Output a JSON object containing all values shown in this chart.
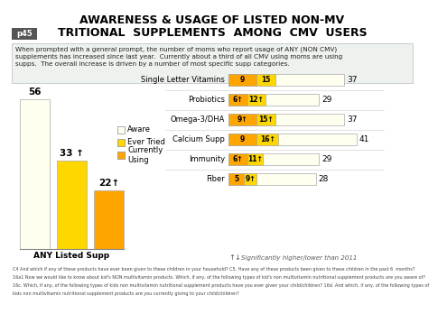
{
  "title_line1": "AWARENESS & USAGE OF LISTED NON-MV",
  "title_line2": "TRITIONAL  SUPPLEMENTS  AMONG  CMV  USERS",
  "page_label": "p45",
  "subtitle": "When prompted with a general prompt, the number of moms who report usage of ANY (NON CMV)\nsupplements has increased since last year.  Currently about a third of all CMV using moms are using\nsupps.  The overall increase is driven by a number of most specific supp categories.",
  "left_bar": {
    "label": "ANY Listed Supp",
    "aware": 56,
    "ever_tried": 33,
    "currently": 22,
    "ever_tried_arrow": true,
    "currently_arrow": true
  },
  "right_bars": [
    {
      "category": "Single Letter Vitamins",
      "currently": 9,
      "ever_tried": 15,
      "aware": 37,
      "curr_arrow": false,
      "tried_arrow": false
    },
    {
      "category": "Probiotics",
      "currently": 6,
      "ever_tried": 12,
      "aware": 29,
      "curr_arrow": true,
      "tried_arrow": true
    },
    {
      "category": "Omega-3/DHA",
      "currently": 9,
      "ever_tried": 15,
      "aware": 37,
      "curr_arrow": true,
      "tried_arrow": true
    },
    {
      "category": "Calcium Supp",
      "currently": 9,
      "ever_tried": 16,
      "aware": 41,
      "curr_arrow": false,
      "tried_arrow": true
    },
    {
      "category": "Immunity",
      "currently": 6,
      "ever_tried": 11,
      "aware": 29,
      "curr_arrow": true,
      "tried_arrow": true
    },
    {
      "category": "Fiber",
      "currently": 5,
      "ever_tried": 9,
      "aware": 28,
      "curr_arrow": false,
      "tried_arrow": true
    }
  ],
  "colors": {
    "aware": "#FFFFF0",
    "ever_tried": "#FFD700",
    "currently": "#FFA500",
    "background": "#FFFFFF",
    "subtitle_bg": "#EEF2EE",
    "page_label_bg": "#555555",
    "page_label_fg": "#FFFFFF"
  },
  "legend": {
    "aware_label": "Aware",
    "tried_label": "Ever Tried",
    "current_label": "Currently\nUsing"
  },
  "footnote_line1": "C4 And which if any of these products have ever been given to these children in your household? C5. Have any of these products been given to these children in the past 6  months?",
  "footnote_line2": "16a1 Now we would like to know about kid's NON multivitamin products. Which, if any, of the following types of kid's non multivitamin nutritional supplement products are you aware of?",
  "footnote_line3": "16c. Which, if any, of the following types of kids non multivitamin nutritional supplement products have you ever given your child/children? 16d. And which, if any, of the following types of",
  "footnote_line4": "kids non multivitamin nutritional supplement products are you currently giving to your child/children?"
}
